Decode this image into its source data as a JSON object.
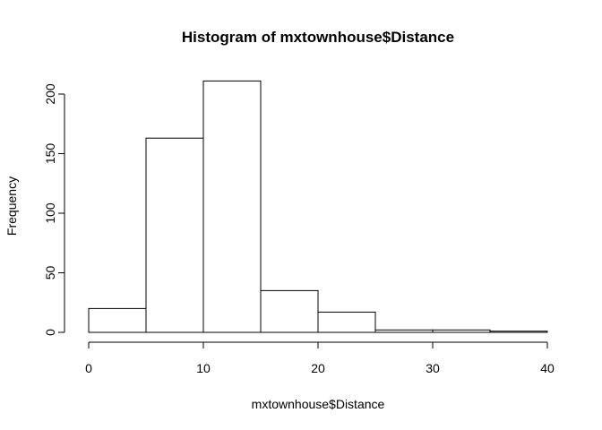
{
  "chart_data": {
    "type": "bar",
    "title": "Histogram of mxtownhouse$Distance",
    "xlabel": "mxtownhouse$Distance",
    "ylabel": "Frequency",
    "bins": [
      {
        "start": 0,
        "end": 5,
        "count": 20
      },
      {
        "start": 5,
        "end": 10,
        "count": 163
      },
      {
        "start": 10,
        "end": 15,
        "count": 211
      },
      {
        "start": 15,
        "end": 20,
        "count": 35
      },
      {
        "start": 20,
        "end": 25,
        "count": 17
      },
      {
        "start": 25,
        "end": 30,
        "count": 2
      },
      {
        "start": 30,
        "end": 35,
        "count": 2
      },
      {
        "start": 35,
        "end": 40,
        "count": 1
      }
    ],
    "xlim": [
      0,
      40
    ],
    "ylim": [
      0,
      211
    ],
    "x_ticks": [
      "0",
      "10",
      "20",
      "30",
      "40"
    ],
    "y_ticks": [
      "0",
      "50",
      "100",
      "150",
      "200"
    ],
    "grid": false,
    "colors": {
      "bar_fill": "#ffffff",
      "bar_stroke": "#000000"
    }
  }
}
